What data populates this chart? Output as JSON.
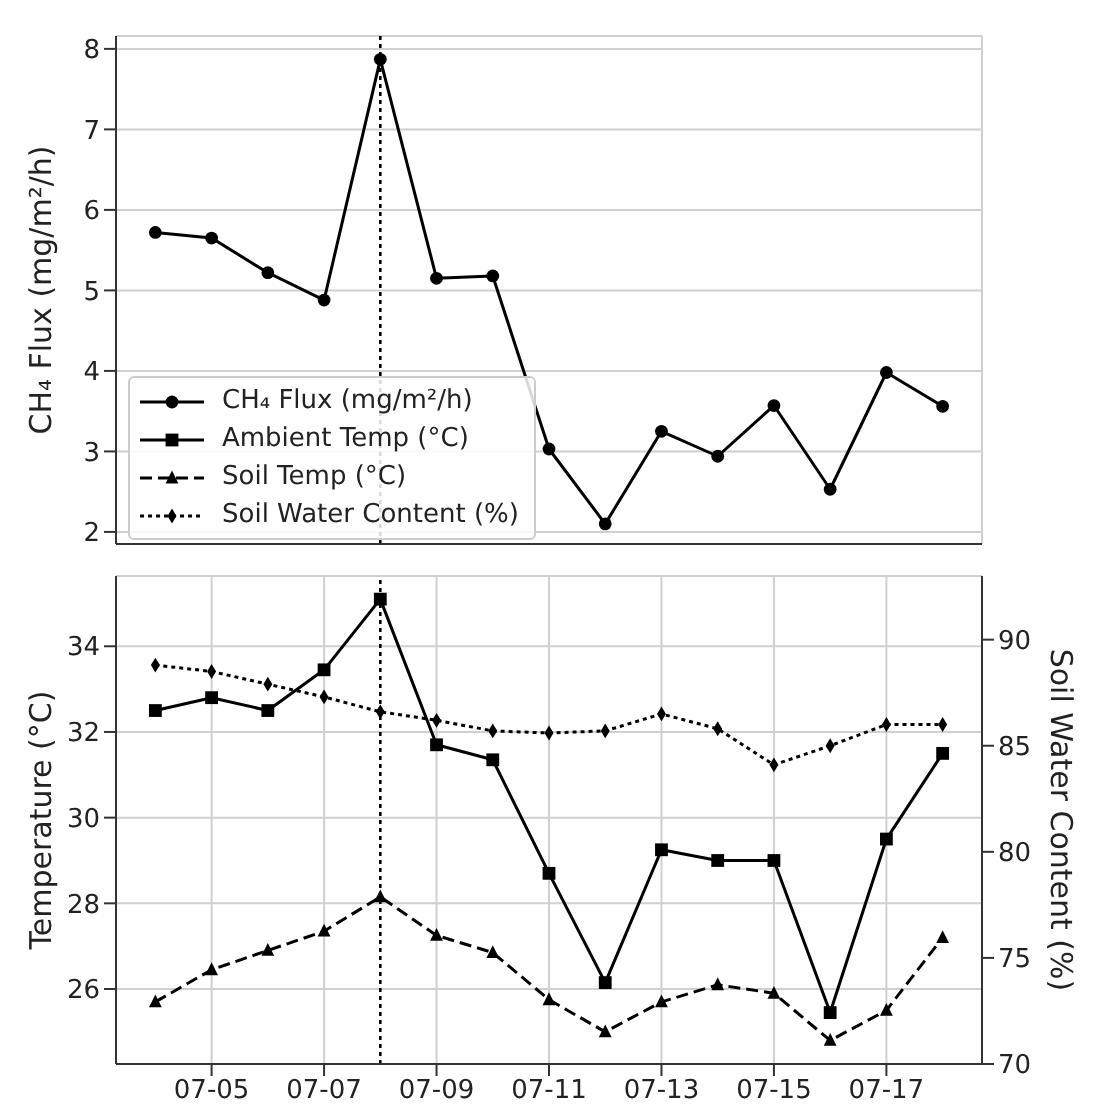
{
  "chart_data": [
    {
      "type": "line",
      "ylabel": "CH₄ Flux (mg/m²/h)",
      "x": [
        "--07-04",
        "--07-05",
        "--07-06",
        "--07-07",
        "--07-08",
        "--07-09",
        "--07-10",
        "--07-11",
        "--07-12",
        "--07-13",
        "--07-14",
        "--07-15",
        "--07-16",
        "--07-17",
        "--07-18"
      ],
      "series": [
        {
          "name": "CH₄ Flux (mg/m²/h)",
          "color": "#000000",
          "marker": "circle",
          "line_style": "solid",
          "values": [
            5.72,
            5.65,
            5.22,
            4.88,
            7.87,
            5.15,
            5.18,
            3.03,
            2.1,
            3.25,
            2.94,
            3.57,
            2.53,
            3.98,
            3.56
          ]
        }
      ],
      "xlim": [
        "--07-03T07:12",
        "--07-18T16:48"
      ],
      "xticks": [
        {
          "value": "--07-05",
          "label": "07-05"
        },
        {
          "value": "--07-07",
          "label": "07-07"
        },
        {
          "value": "--07-09",
          "label": "07-09"
        },
        {
          "value": "--07-11",
          "label": "07-11"
        },
        {
          "value": "--07-13",
          "label": "07-13"
        },
        {
          "value": "--07-15",
          "label": "07-15"
        },
        {
          "value": "--07-17",
          "label": "07-17"
        }
      ],
      "ylim": [
        1.85,
        8.16
      ],
      "yticks": [
        2,
        3,
        4,
        5,
        6,
        7,
        8
      ],
      "tick_labels": "y",
      "grid": true,
      "legend": "bottom left",
      "ref_lines": [
        {
          "axis": "x",
          "value": "--07-08",
          "color": "#000000",
          "line_style": "dotted"
        }
      ]
    },
    {
      "type": "line",
      "ylabel": "Temperature (°C)",
      "y2label": "Soil Water Content (%)",
      "x": [
        "--07-04",
        "--07-05",
        "--07-06",
        "--07-07",
        "--07-08",
        "--07-09",
        "--07-10",
        "--07-11",
        "--07-12",
        "--07-13",
        "--07-14",
        "--07-15",
        "--07-16",
        "--07-17",
        "--07-18"
      ],
      "series": [
        {
          "name": "Ambient Temp (°C)",
          "color": "#000000",
          "marker": "square",
          "line_style": "solid",
          "values": [
            32.5,
            32.8,
            32.5,
            33.45,
            35.1,
            31.7,
            31.35,
            28.7,
            26.15,
            29.25,
            29.0,
            29.0,
            25.45,
            29.5,
            31.5
          ]
        },
        {
          "name": "Soil Temp (°C)",
          "color": "#000000",
          "marker": "triangle",
          "line_style": "dashed",
          "values": [
            25.7,
            26.45,
            26.9,
            27.35,
            28.15,
            27.25,
            26.85,
            25.75,
            25.0,
            25.7,
            26.1,
            25.9,
            24.8,
            25.5,
            27.2
          ]
        },
        {
          "name": "Soil Water Content (%)",
          "color": "#000000",
          "marker": "diamond",
          "line_style": "dotted",
          "axis": "y2",
          "values": [
            88.8,
            88.5,
            87.9,
            87.3,
            86.6,
            86.2,
            85.7,
            85.6,
            85.7,
            86.5,
            85.8,
            84.1,
            85.0,
            86.0,
            86.0
          ]
        }
      ],
      "xlim": [
        "--07-03T07:12",
        "--07-18T16:48"
      ],
      "xticks": [
        {
          "value": "--07-05",
          "label": "07-05"
        },
        {
          "value": "--07-07",
          "label": "07-07"
        },
        {
          "value": "--07-09",
          "label": "07-09"
        },
        {
          "value": "--07-11",
          "label": "07-11"
        },
        {
          "value": "--07-13",
          "label": "07-13"
        },
        {
          "value": "--07-15",
          "label": "07-15"
        },
        {
          "value": "--07-17",
          "label": "07-17"
        }
      ],
      "ylim": [
        24.25,
        35.64
      ],
      "yticks": [
        26,
        28,
        30,
        32,
        34
      ],
      "y2lim": [
        70,
        93
      ],
      "y2ticks": [
        70,
        75,
        80,
        85,
        90
      ],
      "grid": true,
      "legend": "top",
      "ref_lines": [
        {
          "axis": "x",
          "value": "--07-08",
          "color": "#000000",
          "line_style": "dotted"
        }
      ]
    }
  ]
}
